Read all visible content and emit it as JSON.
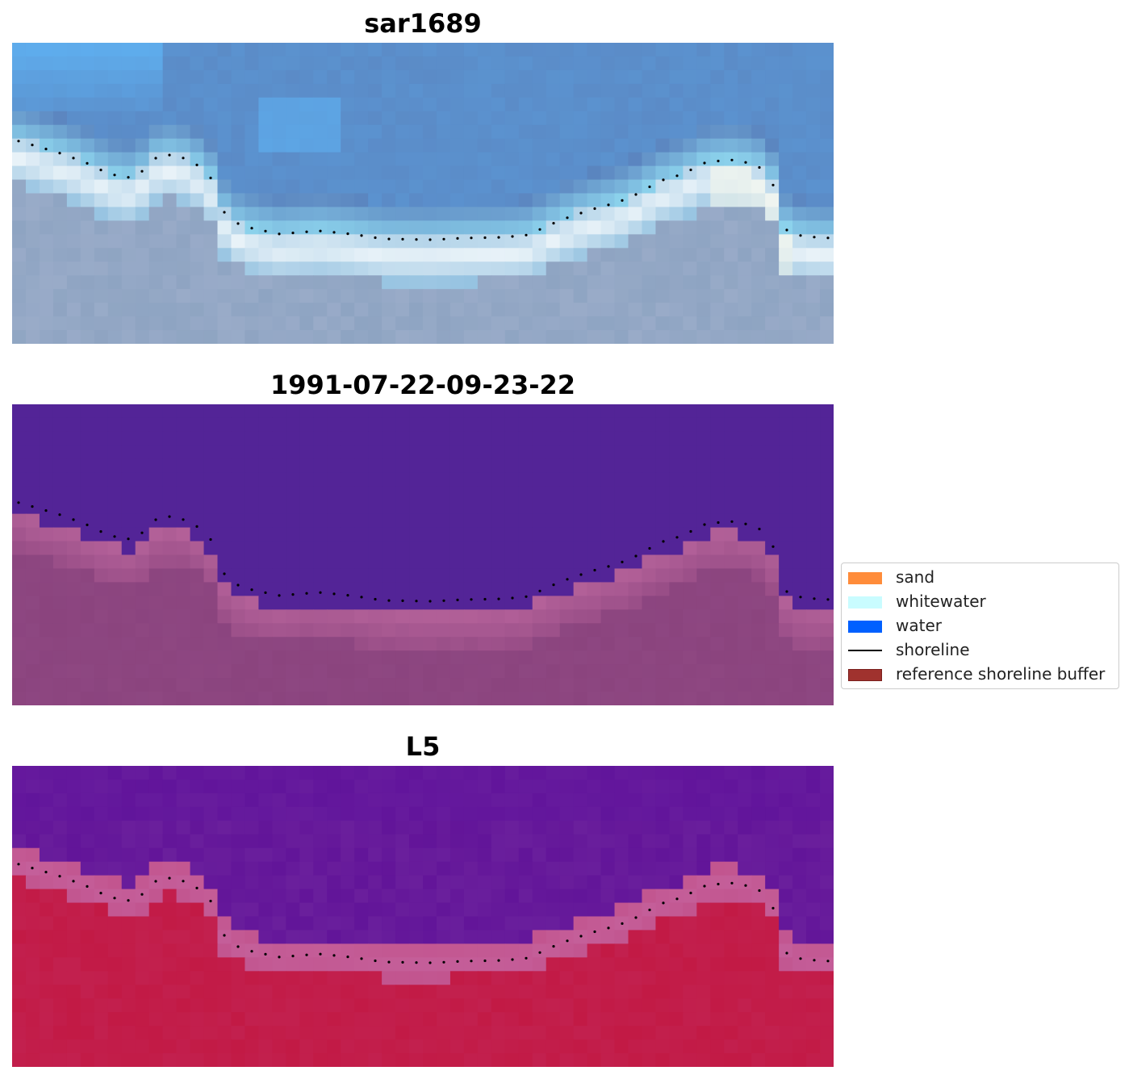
{
  "panels": [
    {
      "title": "sar1689",
      "kind": "rgb"
    },
    {
      "title": "1991-07-22-09-23-22",
      "kind": "classified"
    },
    {
      "title": "L5",
      "kind": "index"
    }
  ],
  "legend": {
    "items": [
      {
        "label": "sand",
        "type": "patch",
        "color": "#ff8c3a"
      },
      {
        "label": "whitewater",
        "type": "patch",
        "color": "#c9fcff"
      },
      {
        "label": "water",
        "type": "patch",
        "color": "#0060ff"
      },
      {
        "label": "shoreline",
        "type": "line",
        "color": "#000000"
      },
      {
        "label": "reference shoreline buffer",
        "type": "patch",
        "color": "#a0322e",
        "edge": "#7a1f1c"
      }
    ]
  },
  "colors": {
    "rgb_sky_light": "#5fb4f5",
    "rgb_ocean": "#5a84bf",
    "rgb_beach_light": "#e8f2f8",
    "rgb_land": "#8ea4c2",
    "class_water": "#532497",
    "class_buffer": "#b5629a",
    "class_land": "#8b447e",
    "index_water": "#6a1f9c",
    "index_transition": "#c2558f",
    "index_land": "#c21a45"
  }
}
